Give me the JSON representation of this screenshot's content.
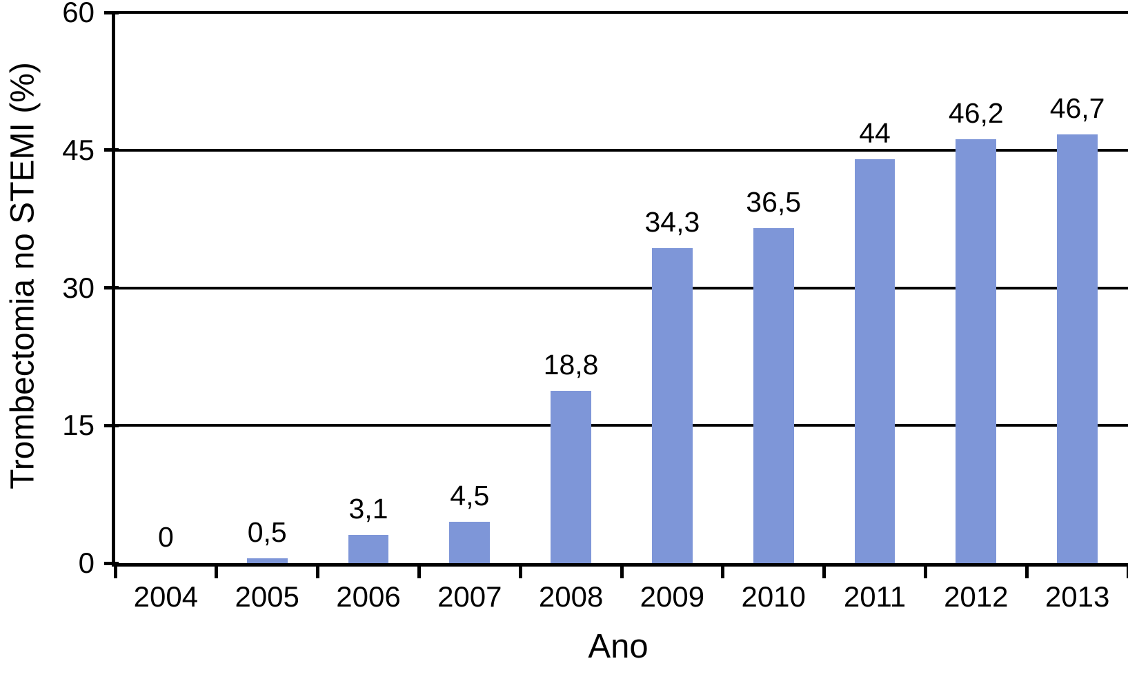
{
  "chart_data": {
    "type": "bar",
    "categories": [
      "2004",
      "2005",
      "2006",
      "2007",
      "2008",
      "2009",
      "2010",
      "2011",
      "2012",
      "2013"
    ],
    "values": [
      0,
      0.5,
      3.1,
      4.5,
      18.8,
      34.3,
      36.5,
      44,
      46.2,
      46.7
    ],
    "value_labels": [
      "0",
      "0,5",
      "3,1",
      "4,5",
      "18,8",
      "34,3",
      "36,5",
      "44",
      "46,2",
      "46,7"
    ],
    "title": "",
    "xlabel": "Ano",
    "ylabel": "Trombectomia no STEMI (%)",
    "ylim": [
      0,
      60
    ],
    "yticks": [
      0,
      15,
      30,
      45,
      60
    ],
    "ytick_labels": [
      "0",
      "15",
      "30",
      "45",
      "60"
    ],
    "grid": true,
    "legend_position": "none",
    "bar_color": "#7E96D8",
    "axis_color": "#000000",
    "text_color": "#000000",
    "background_color": "#FFFFFF",
    "bar_width_fraction": 0.4
  }
}
